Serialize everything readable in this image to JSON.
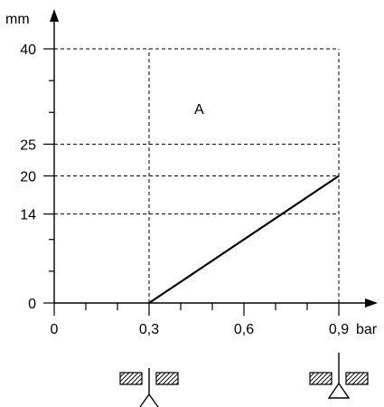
{
  "chart_data": {
    "type": "line",
    "ylabel": "mm",
    "xlabel": "bar",
    "annotation": "A",
    "xlim": [
      0,
      0.9
    ],
    "ylim": [
      0,
      40
    ],
    "x_tick_labels": [
      {
        "value": 0,
        "label": "0"
      },
      {
        "value": 0.3,
        "label": "0,3"
      },
      {
        "value": 0.6,
        "label": "0,6"
      },
      {
        "value": 0.9,
        "label": "0,9"
      }
    ],
    "y_tick_labels": [
      {
        "value": 0,
        "label": "0"
      },
      {
        "value": 14,
        "label": "14"
      },
      {
        "value": 20,
        "label": "20"
      },
      {
        "value": 25,
        "label": "25"
      },
      {
        "value": 40,
        "label": "40"
      }
    ],
    "x_minor_ticks": [
      0.1,
      0.2,
      0.4,
      0.5,
      0.7,
      0.8
    ],
    "y_minor_ticks": [
      5,
      10,
      30,
      35
    ],
    "grid_x": [
      0.3,
      0.9
    ],
    "grid_y": [
      14,
      20,
      25,
      40
    ],
    "series": [
      {
        "x": [
          0.3,
          0.9
        ],
        "y": [
          0,
          20
        ]
      }
    ],
    "symbols": [
      {
        "x": 0.3,
        "icon": "valve-open-icon"
      },
      {
        "x": 0.9,
        "icon": "valve-closed-icon"
      }
    ]
  }
}
